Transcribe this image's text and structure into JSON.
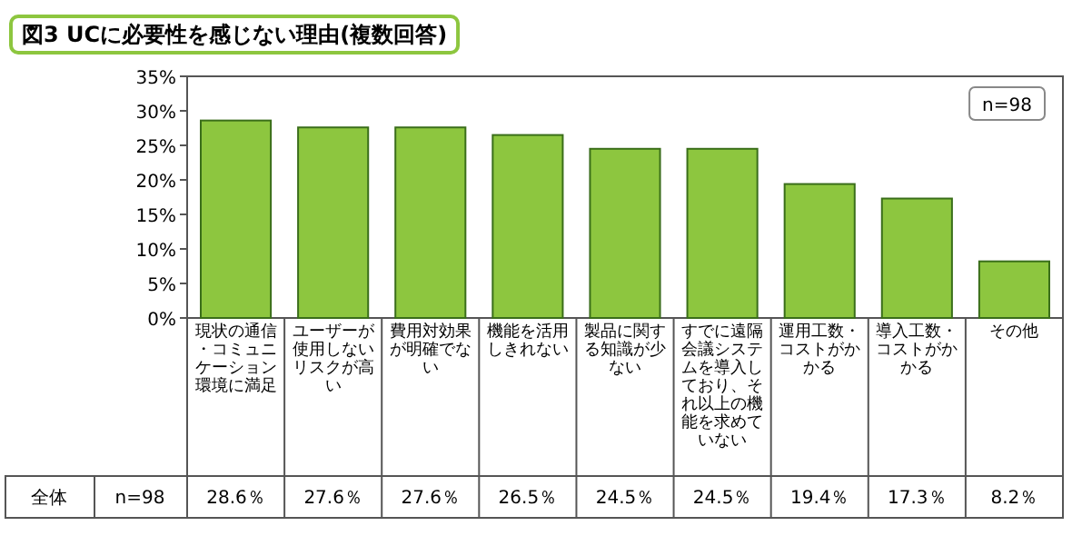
{
  "chart_data": {
    "type": "bar",
    "title": "図3 UCに必要性を感じない理由(複数回答)",
    "categories": [
      "現状の通信・コミュニケーション環境に満足",
      "ユーザーが使用しないリスクが高い",
      "費用対効果が明確でない",
      "機能を活用しきれない",
      "製品に関する知識が少ない",
      "すでに遠隔会議システムを導入しており、それ以上の機能を求めていない",
      "運用工数・コストがかかる",
      "導入工数・コストがかかる",
      "その他"
    ],
    "values": [
      28.6,
      27.6,
      27.6,
      26.5,
      24.5,
      24.5,
      19.4,
      17.3,
      8.2
    ],
    "value_labels": [
      "28.6％",
      "27.6％",
      "27.6％",
      "26.5％",
      "24.5％",
      "24.5％",
      "19.4％",
      "17.3％",
      "8.2％"
    ],
    "color": "#8dc63f",
    "ylim": [
      0,
      35
    ],
    "yticks": [
      {
        "value": 0,
        "label": "0%"
      },
      {
        "value": 5,
        "label": "5%"
      },
      {
        "value": 10,
        "label": "10%"
      },
      {
        "value": 15,
        "label": "15%"
      },
      {
        "value": 20,
        "label": "20%"
      },
      {
        "value": 25,
        "label": "25%"
      },
      {
        "value": 30,
        "label": "30%"
      },
      {
        "value": 35,
        "label": "35%"
      }
    ],
    "annotations": [
      "n=98",
      "全体",
      "n=98"
    ]
  }
}
